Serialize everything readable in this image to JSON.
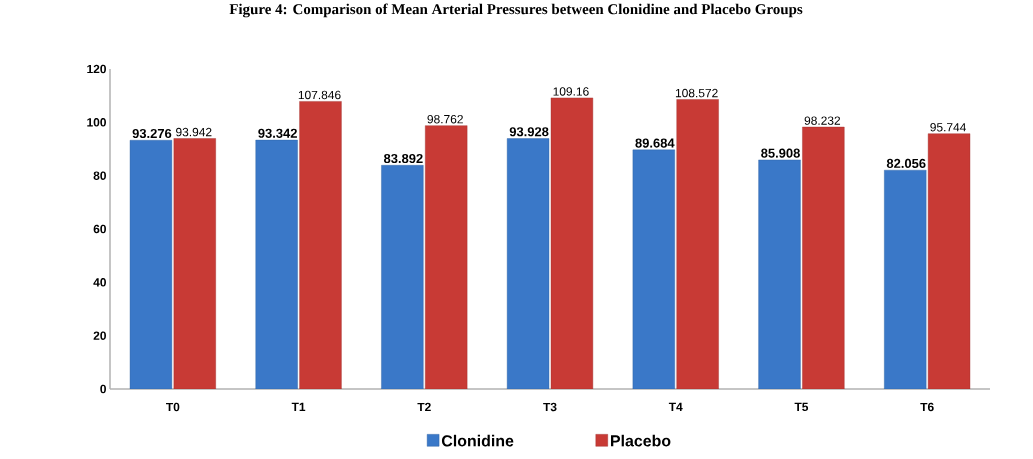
{
  "chart_data": {
    "type": "bar",
    "title": "Figure 4: Comparison of Mean Arterial Pressures between Clonidine and Placebo Groups",
    "categories": [
      "T0",
      "T1",
      "T2",
      "T3",
      "T4",
      "T5",
      "T6"
    ],
    "series": [
      {
        "name": "Clonidine",
        "color": "#3a78c8",
        "values": [
          93.276,
          93.342,
          83.892,
          93.928,
          89.684,
          85.908,
          82.056
        ]
      },
      {
        "name": "Placebo",
        "color": "#c83a35",
        "values": [
          93.942,
          107.846,
          98.762,
          109.16,
          108.572,
          98.232,
          95.744
        ]
      }
    ],
    "ylim": [
      0,
      120
    ],
    "yticks": [
      0,
      20,
      40,
      60,
      80,
      100,
      120
    ],
    "grid": false,
    "legend": "bottom",
    "data_labels": true
  }
}
